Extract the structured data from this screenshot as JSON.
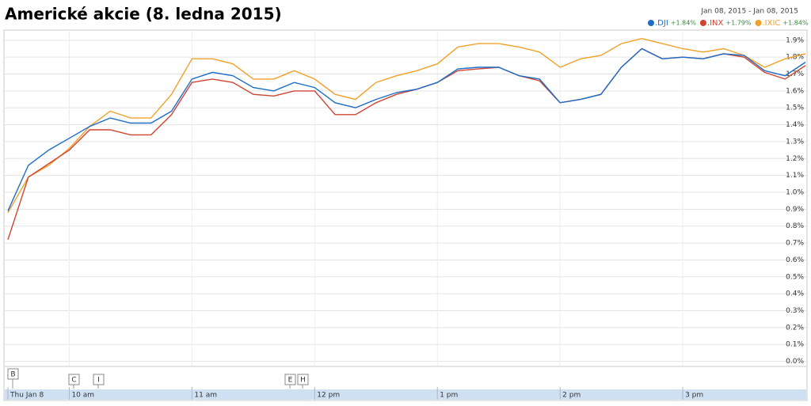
{
  "chart_data": {
    "type": "line",
    "title": "Americké akcie (8. ledna 2015)",
    "date_range": "Jan 08, 2015  -  Jan 08, 2015",
    "categories": [
      "Thu Jan 8",
      null,
      null,
      "10 am",
      null,
      null,
      null,
      null,
      null,
      "11 am",
      null,
      null,
      null,
      null,
      null,
      "12 pm",
      null,
      null,
      null,
      null,
      null,
      "1 pm",
      null,
      null,
      null,
      null,
      null,
      "2 pm",
      null,
      null,
      null,
      null,
      null,
      "3 pm",
      null,
      null,
      null,
      null,
      null,
      null
    ],
    "series": [
      {
        "name": ".DJI",
        "change": "+1.84%",
        "color": "#1c6cc8",
        "values": [
          0.89,
          1.16,
          1.25,
          1.32,
          1.39,
          1.44,
          1.41,
          1.41,
          1.48,
          1.67,
          1.71,
          1.69,
          1.62,
          1.6,
          1.65,
          1.62,
          1.53,
          1.5,
          1.55,
          1.59,
          1.61,
          1.65,
          1.73,
          1.74,
          1.74,
          1.69,
          1.67,
          1.53,
          1.55,
          1.58,
          1.74,
          1.85,
          1.79,
          1.8,
          1.79,
          1.82,
          1.81,
          1.72,
          1.69,
          1.77
        ]
      },
      {
        "name": ".INX",
        "change": "+1.79%",
        "color": "#cf4430",
        "values": [
          0.72,
          1.09,
          1.17,
          1.25,
          1.37,
          1.37,
          1.34,
          1.34,
          1.46,
          1.65,
          1.67,
          1.65,
          1.58,
          1.57,
          1.6,
          1.6,
          1.46,
          1.46,
          1.53,
          1.58,
          1.61,
          1.65,
          1.72,
          1.73,
          1.74,
          1.69,
          1.66,
          1.53,
          1.55,
          1.58,
          1.74,
          1.85,
          1.79,
          1.8,
          1.79,
          1.82,
          1.8,
          1.71,
          1.67,
          1.75
        ]
      },
      {
        "name": ".IXIC",
        "change": "+1.84%",
        "color": "#f0a12a",
        "values": [
          0.88,
          1.09,
          1.16,
          1.26,
          1.39,
          1.48,
          1.44,
          1.44,
          1.58,
          1.79,
          1.79,
          1.76,
          1.67,
          1.67,
          1.72,
          1.67,
          1.58,
          1.55,
          1.65,
          1.69,
          1.72,
          1.76,
          1.86,
          1.88,
          1.88,
          1.86,
          1.83,
          1.74,
          1.79,
          1.81,
          1.88,
          1.91,
          1.88,
          1.85,
          1.83,
          1.85,
          1.81,
          1.74,
          1.79,
          1.82
        ]
      }
    ],
    "ylim": [
      -0.03,
      1.96
    ],
    "yticks": [
      {
        "value": 0,
        "label": "0.0%"
      },
      {
        "value": 0.1,
        "label": "0.1%"
      },
      {
        "value": 0.2,
        "label": "0.2%"
      },
      {
        "value": 0.3,
        "label": "0.3%"
      },
      {
        "value": 0.4,
        "label": "0.4%"
      },
      {
        "value": 0.5,
        "label": "0.5%"
      },
      {
        "value": 0.6,
        "label": "0.6%"
      },
      {
        "value": 0.7,
        "label": "0.7%"
      },
      {
        "value": 0.8,
        "label": "0.8%"
      },
      {
        "value": 0.9,
        "label": "0.9%"
      },
      {
        "value": 1.0,
        "label": "1.0%"
      },
      {
        "value": 1.1,
        "label": "1.1%"
      },
      {
        "value": 1.2,
        "label": "1.2%"
      },
      {
        "value": 1.3,
        "label": "1.3%"
      },
      {
        "value": 1.4,
        "label": "1.4%"
      },
      {
        "value": 1.5,
        "label": "1.5%"
      },
      {
        "value": 1.6,
        "label": "1.6%"
      },
      {
        "value": 1.7,
        "label": "1.7%"
      },
      {
        "value": 1.8,
        "label": "1.8%"
      },
      {
        "value": 1.9,
        "label": "1.9%"
      }
    ],
    "grid": true,
    "change_color": "#3a8a3a",
    "events": [
      "B",
      "C",
      "I",
      "E",
      "H"
    ]
  }
}
